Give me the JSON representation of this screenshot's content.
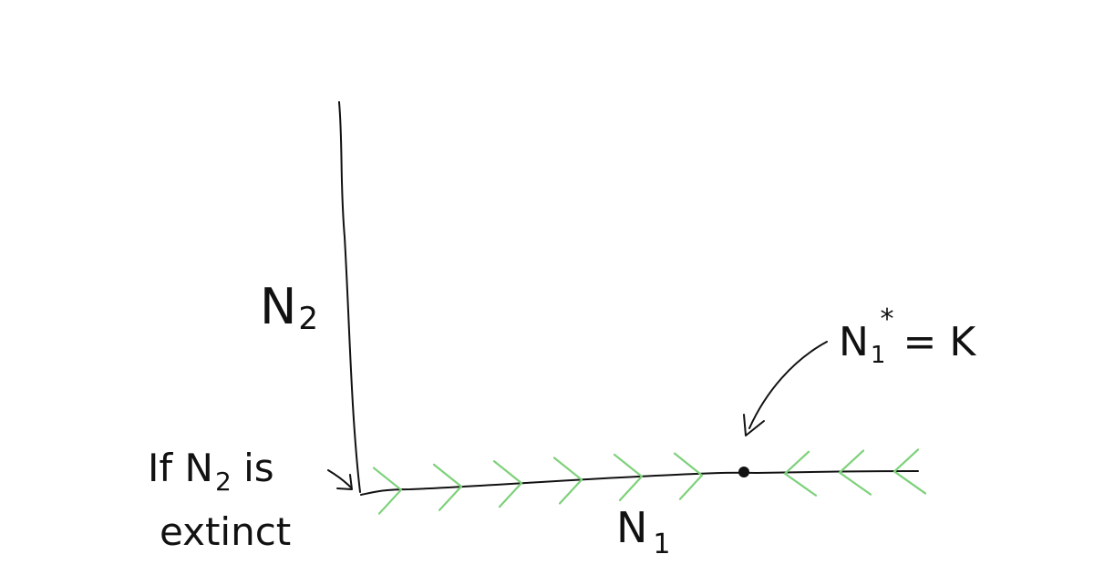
{
  "axes": {
    "y_label_main": "N",
    "y_label_sub": "2",
    "x_label_main": "N",
    "x_label_sub": "1"
  },
  "equilibrium": {
    "label_main": "N",
    "label_sub": "1",
    "label_star": "*",
    "label_rest": "= K"
  },
  "note": {
    "line1_a": "If N",
    "line1_sub": "2",
    "line1_b": " is",
    "line2": "extinct"
  },
  "flow": {
    "arrows_right": 6,
    "arrows_left": 3,
    "color": "#7dd17a"
  }
}
